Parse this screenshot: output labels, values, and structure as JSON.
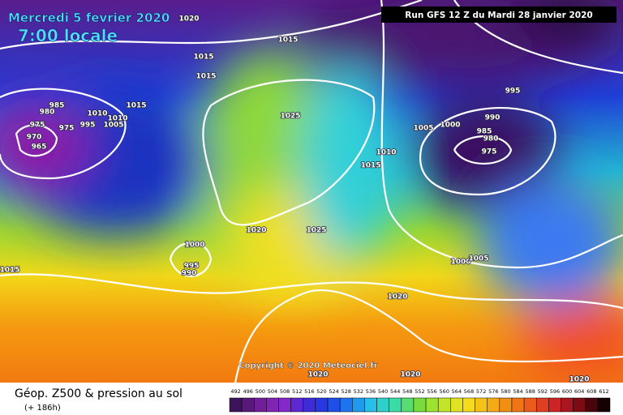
{
  "header": {
    "date": "Mercredi 5 fevrier 2020",
    "time": "7:00 locale",
    "run": "Run GFS 12 Z du Mardi 28 janvier 2020"
  },
  "map": {
    "copyright": "Copyright © 2020 Meteociel.fr",
    "pressure_labels": [
      1020,
      1015,
      1015,
      1015,
      985,
      980,
      975,
      975,
      970,
      965,
      1010,
      995,
      1010,
      1005,
      1015,
      1025,
      1010,
      1015,
      1005,
      1000,
      995,
      990,
      985,
      980,
      975,
      1020,
      1025,
      1000,
      995,
      990,
      1015,
      1000,
      1005,
      1020,
      1020,
      1020,
      1020
    ]
  },
  "footer": {
    "title": "Géop. Z500 & pression au sol",
    "lead": "(+ 186h)",
    "scale": [
      492,
      496,
      500,
      504,
      508,
      512,
      516,
      520,
      524,
      528,
      532,
      536,
      540,
      544,
      548,
      552,
      556,
      560,
      564,
      568,
      572,
      576,
      580,
      584,
      588,
      592,
      596,
      600,
      604,
      608,
      612
    ]
  }
}
